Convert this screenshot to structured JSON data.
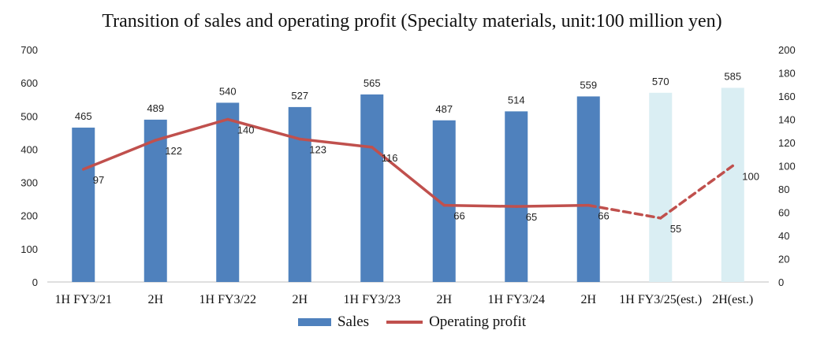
{
  "chart_data": {
    "type": "bar",
    "title": "Transition of sales and operating profit (Specialty materials, unit:100 million yen)",
    "categories": [
      "1H FY3/21",
      "2H",
      "1H FY3/22",
      "2H",
      "1H FY3/23",
      "2H",
      "1H FY3/24",
      "2H",
      "1H FY3/25(est.)",
      "2H(est.)"
    ],
    "series": [
      {
        "name": "Sales",
        "kind": "bar",
        "axis": "left",
        "values": [
          465,
          489,
          540,
          527,
          565,
          487,
          514,
          559,
          570,
          585
        ],
        "estimated": [
          false,
          false,
          false,
          false,
          false,
          false,
          false,
          false,
          true,
          true
        ]
      },
      {
        "name": "Operating profit",
        "kind": "line",
        "axis": "right",
        "values": [
          97,
          122,
          140,
          123,
          116,
          66,
          65,
          66,
          55,
          100
        ],
        "estimated": [
          false,
          false,
          false,
          false,
          false,
          false,
          false,
          false,
          true,
          true
        ]
      }
    ],
    "y_left": {
      "min": 0,
      "max": 700,
      "step": 100
    },
    "y_right": {
      "min": 0,
      "max": 200,
      "step": 20
    },
    "legend_position": "bottom",
    "grid": false
  },
  "colors": {
    "bar": "#4f81bd",
    "bar_estimated": "#daeef3",
    "line": "#c0504d"
  }
}
